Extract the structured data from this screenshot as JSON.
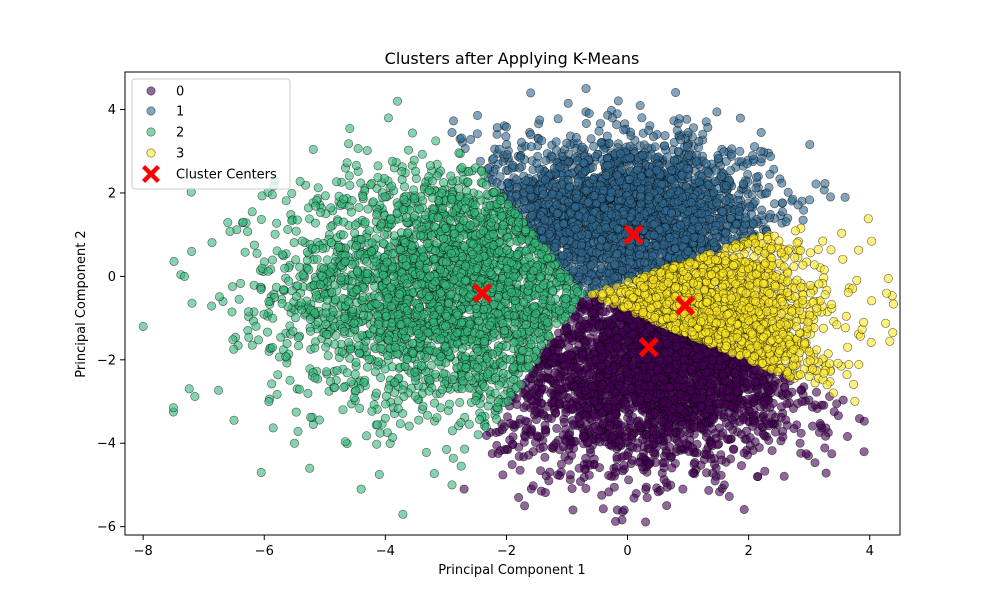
{
  "chart_data": {
    "type": "scatter",
    "title": "Clusters after Applying K-Means",
    "xlabel": "Principal Component 1",
    "ylabel": "Principal Component 2",
    "xlim": [
      -8.3,
      4.5
    ],
    "ylim": [
      -6.2,
      4.9
    ],
    "xticks": [
      -8,
      -6,
      -4,
      -2,
      0,
      2,
      4
    ],
    "yticks": [
      -6,
      -4,
      -2,
      0,
      2,
      4
    ],
    "xtick_labels": [
      "−8",
      "−6",
      "−4",
      "−2",
      "0",
      "2",
      "4"
    ],
    "ytick_labels": [
      "−6",
      "−4",
      "−2",
      "0",
      "2",
      "4"
    ],
    "grid": false,
    "legend_placement": "top-left",
    "legend_entries": [
      "0",
      "1",
      "2",
      "3",
      "Cluster Centers"
    ],
    "series": [
      {
        "name": "0",
        "color": "#440154",
        "approx_count": 1800,
        "region": {
          "x_range": [
            -4.5,
            2.4
          ],
          "y_range": [
            -5.6,
            0.0
          ],
          "centroid": [
            0.35,
            -1.7
          ]
        },
        "sample_points": [
          [
            -0.9,
            -5.6
          ],
          [
            -1.7,
            -5.5
          ],
          [
            -1.8,
            -5.3
          ],
          [
            -2.7,
            -5.1
          ],
          [
            -2.9,
            -5.0
          ],
          [
            -4.1,
            -4.75
          ],
          [
            1.6,
            -5.0
          ],
          [
            2.15,
            -4.8
          ],
          [
            -1.3,
            -4.9
          ],
          [
            -0.8,
            -4.6
          ],
          [
            0.0,
            -4.3
          ],
          [
            1.1,
            -4.5
          ]
        ]
      },
      {
        "name": "1",
        "color": "#31688e",
        "approx_count": 2600,
        "region": {
          "x_range": [
            -2.6,
            2.6
          ],
          "y_range": [
            0.0,
            4.4
          ],
          "centroid": [
            0.1,
            1.0
          ]
        },
        "sample_points": [
          [
            -1.6,
            4.4
          ],
          [
            -1.45,
            3.75
          ],
          [
            -1.6,
            3.4
          ],
          [
            -0.25,
            3.8
          ],
          [
            1.0,
            3.45
          ],
          [
            0.35,
            3.5
          ],
          [
            2.2,
            3.0
          ],
          [
            1.55,
            2.4
          ],
          [
            2.3,
            2.0
          ]
        ]
      },
      {
        "name": "2",
        "color": "#35b779",
        "approx_count": 3000,
        "region": {
          "x_range": [
            -8.0,
            -0.9
          ],
          "y_range": [
            -5.1,
            4.2
          ],
          "centroid": [
            -2.4,
            -0.4
          ]
        },
        "sample_points": [
          [
            -8.0,
            -1.2
          ],
          [
            -7.5,
            -3.15
          ],
          [
            -3.8,
            4.2
          ],
          [
            -3.95,
            3.8
          ],
          [
            -2.9,
            3.45
          ],
          [
            -6.35,
            1.3
          ],
          [
            -6.5,
            -3.45
          ],
          [
            -6.05,
            -4.7
          ],
          [
            -4.4,
            -5.1
          ],
          [
            -5.5,
            -4.0
          ],
          [
            -5.25,
            -4.6
          ],
          [
            -7.2,
            0.6
          ]
        ]
      },
      {
        "name": "3",
        "color": "#fde725",
        "approx_count": 2400,
        "region": {
          "x_range": [
            -0.8,
            3.9
          ],
          "y_range": [
            -4.8,
            1.4
          ],
          "centroid": [
            0.95,
            -0.7
          ]
        },
        "sample_points": [
          [
            3.9,
            -1.1
          ],
          [
            2.9,
            1.35
          ],
          [
            2.5,
            0.85
          ],
          [
            3.0,
            -2.4
          ],
          [
            2.95,
            -4.25
          ],
          [
            2.85,
            -4.0
          ],
          [
            2.15,
            -4.8
          ],
          [
            -0.05,
            -4.3
          ],
          [
            2.8,
            0.8
          ],
          [
            3.0,
            -1.8
          ]
        ]
      }
    ],
    "centers": {
      "name": "Cluster Centers",
      "color": "#ff0000",
      "marker": "X",
      "points": [
        [
          -2.4,
          -0.4
        ],
        [
          0.1,
          1.0
        ],
        [
          0.95,
          -0.7
        ],
        [
          0.35,
          -1.7
        ]
      ]
    }
  }
}
